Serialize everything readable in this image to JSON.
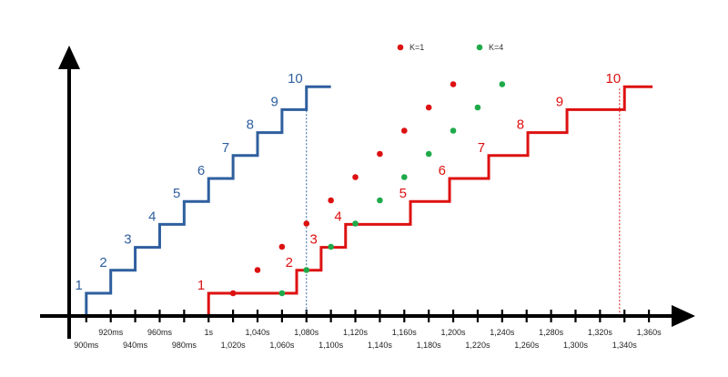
{
  "chart_data": {
    "type": "line",
    "x_unit": "ms",
    "x_ticks": [
      {
        "value": 900,
        "label": "900ms"
      },
      {
        "value": 920,
        "label": "920ms"
      },
      {
        "value": 940,
        "label": "940ms"
      },
      {
        "value": 960,
        "label": "960ms"
      },
      {
        "value": 980,
        "label": "980ms"
      },
      {
        "value": 1000,
        "label": "1s"
      },
      {
        "value": 1020,
        "label": "1,020s"
      },
      {
        "value": 1040,
        "label": "1,040s"
      },
      {
        "value": 1060,
        "label": "1,060s"
      },
      {
        "value": 1080,
        "label": "1,080s"
      },
      {
        "value": 1100,
        "label": "1,100s"
      },
      {
        "value": 1120,
        "label": "1,120s"
      },
      {
        "value": 1140,
        "label": "1,140s"
      },
      {
        "value": 1160,
        "label": "1,160s"
      },
      {
        "value": 1180,
        "label": "1,180s"
      },
      {
        "value": 1200,
        "label": "1,200s"
      },
      {
        "value": 1220,
        "label": "1,220s"
      },
      {
        "value": 1240,
        "label": "1,240s"
      },
      {
        "value": 1260,
        "label": "1,260s"
      },
      {
        "value": 1280,
        "label": "1,280s"
      },
      {
        "value": 1300,
        "label": "1,300s"
      },
      {
        "value": 1320,
        "label": "1,320s"
      },
      {
        "value": 1340,
        "label": "1,340s"
      },
      {
        "value": 1360,
        "label": "1,360s"
      }
    ],
    "xlim": [
      886,
      1380
    ],
    "ylim": [
      0,
      10.6
    ],
    "step_series": [
      {
        "color": "#2f5f9e",
        "steps": [
          {
            "level": 1,
            "start": 900,
            "label": "1"
          },
          {
            "level": 2,
            "start": 920,
            "label": "2"
          },
          {
            "level": 3,
            "start": 940,
            "label": "3"
          },
          {
            "level": 4,
            "start": 960,
            "label": "4"
          },
          {
            "level": 5,
            "start": 980,
            "label": "5"
          },
          {
            "level": 6,
            "start": 1000,
            "label": "6"
          },
          {
            "level": 7,
            "start": 1020,
            "label": "7"
          },
          {
            "level": 8,
            "start": 1040,
            "label": "8"
          },
          {
            "level": 9,
            "start": 1060,
            "label": "9"
          },
          {
            "level": 10,
            "start": 1080,
            "label": "10"
          }
        ],
        "end": 1100,
        "marker_x": 1080
      },
      {
        "color": "#dd1111",
        "steps": [
          {
            "level": 1,
            "start": 1000,
            "label": "1"
          },
          {
            "level": 2,
            "start": 1072,
            "label": "2"
          },
          {
            "level": 3,
            "start": 1092,
            "label": "3"
          },
          {
            "level": 4,
            "start": 1112,
            "label": "4"
          },
          {
            "level": 5,
            "start": 1165,
            "label": "5"
          },
          {
            "level": 6,
            "start": 1197,
            "label": "6"
          },
          {
            "level": 7,
            "start": 1229,
            "label": "7"
          },
          {
            "level": 8,
            "start": 1261,
            "label": "8"
          },
          {
            "level": 9,
            "start": 1293,
            "label": "9"
          },
          {
            "level": 10,
            "start": 1340,
            "label": "10"
          }
        ],
        "end": 1363,
        "marker_x": 1336
      }
    ],
    "dot_series": [
      {
        "name": "K=1",
        "color": "#dd1111",
        "points": [
          {
            "x": 1020,
            "y": 1
          },
          {
            "x": 1040,
            "y": 2
          },
          {
            "x": 1060,
            "y": 3
          },
          {
            "x": 1080,
            "y": 4
          },
          {
            "x": 1100,
            "y": 5
          },
          {
            "x": 1120,
            "y": 6
          },
          {
            "x": 1140,
            "y": 7
          },
          {
            "x": 1160,
            "y": 8
          },
          {
            "x": 1180,
            "y": 9
          },
          {
            "x": 1200,
            "y": 10
          }
        ]
      },
      {
        "name": "K=4",
        "color": "#1faa4a",
        "points": [
          {
            "x": 1060,
            "y": 1
          },
          {
            "x": 1080,
            "y": 2
          },
          {
            "x": 1100,
            "y": 3
          },
          {
            "x": 1120,
            "y": 4
          },
          {
            "x": 1140,
            "y": 5
          },
          {
            "x": 1160,
            "y": 6
          },
          {
            "x": 1180,
            "y": 7
          },
          {
            "x": 1200,
            "y": 8
          },
          {
            "x": 1220,
            "y": 9
          },
          {
            "x": 1240,
            "y": 10
          }
        ]
      }
    ],
    "legend": {
      "placement": "top-center"
    },
    "grid": false
  }
}
